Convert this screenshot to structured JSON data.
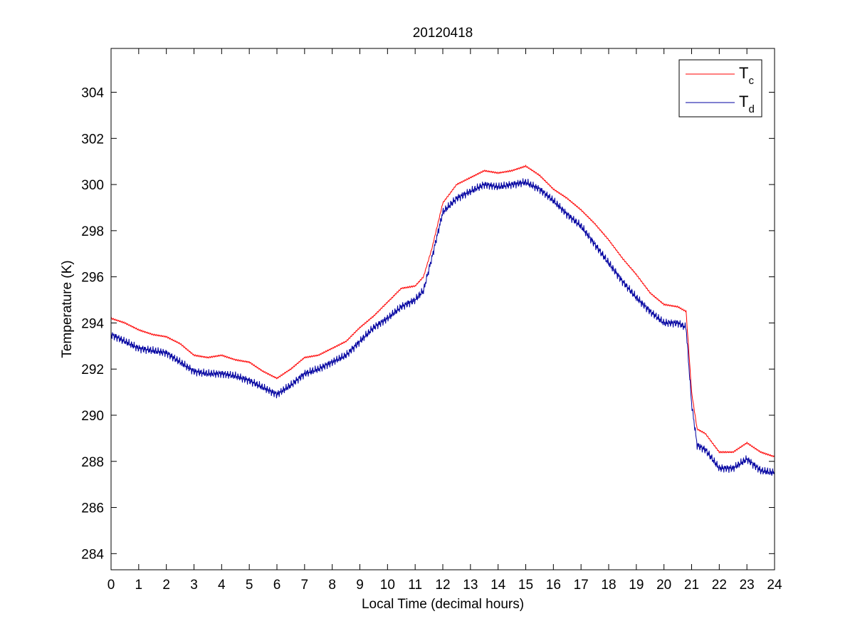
{
  "chart_data": {
    "type": "line",
    "title": "20120418",
    "xlabel": "Local Time (decimal hours)",
    "ylabel": "Temperature (K)",
    "xlim": [
      0,
      24
    ],
    "ylim": [
      283.3,
      305.9
    ],
    "xticks": [
      0,
      1,
      2,
      3,
      4,
      5,
      6,
      7,
      8,
      9,
      10,
      11,
      12,
      13,
      14,
      15,
      16,
      17,
      18,
      19,
      20,
      21,
      22,
      23,
      24
    ],
    "yticks": [
      284,
      286,
      288,
      290,
      292,
      294,
      296,
      298,
      300,
      302,
      304
    ],
    "grid": false,
    "legend_position": "top-right",
    "series": [
      {
        "name": "T_c",
        "legend_main": "T",
        "legend_sub": "c",
        "color": "#ff0000",
        "x": [
          0,
          0.5,
          1,
          1.5,
          2,
          2.5,
          3,
          3.5,
          4,
          4.5,
          5,
          5.5,
          6,
          6.5,
          7,
          7.5,
          8,
          8.5,
          9,
          9.5,
          10,
          10.5,
          11,
          11.3,
          11.6,
          12,
          12.5,
          13,
          13.5,
          14,
          14.5,
          15,
          15.5,
          16,
          16.5,
          17,
          17.5,
          18,
          18.5,
          19,
          19.5,
          20,
          20.5,
          20.8,
          21,
          21.2,
          21.5,
          22,
          22.5,
          23,
          23.5,
          24
        ],
        "y": [
          294.2,
          294.0,
          293.7,
          293.5,
          293.4,
          293.1,
          292.6,
          292.5,
          292.6,
          292.4,
          292.3,
          291.9,
          291.6,
          292.0,
          292.5,
          292.6,
          292.9,
          293.2,
          293.8,
          294.3,
          294.9,
          295.5,
          295.6,
          296.0,
          297.2,
          299.2,
          300.0,
          300.3,
          300.6,
          300.5,
          300.6,
          300.8,
          300.4,
          299.8,
          299.4,
          298.9,
          298.3,
          297.6,
          296.8,
          296.1,
          295.3,
          294.8,
          294.7,
          294.5,
          291.0,
          289.4,
          289.2,
          288.4,
          288.4,
          288.8,
          288.4,
          288.2
        ]
      },
      {
        "name": "T_d",
        "legend_main": "T",
        "legend_sub": "d",
        "color": "#0000a0",
        "x": [
          0,
          0.5,
          1,
          1.5,
          2,
          2.5,
          3,
          3.5,
          4,
          4.5,
          5,
          5.5,
          6,
          6.5,
          7,
          7.5,
          8,
          8.5,
          9,
          9.5,
          10,
          10.5,
          11,
          11.3,
          11.6,
          12,
          12.5,
          13,
          13.5,
          14,
          14.5,
          15,
          15.5,
          16,
          16.5,
          17,
          17.5,
          18,
          18.5,
          19,
          19.5,
          20,
          20.5,
          20.8,
          21,
          21.2,
          21.5,
          22,
          22.5,
          23,
          23.5,
          24
        ],
        "y": [
          293.5,
          293.2,
          292.9,
          292.8,
          292.7,
          292.3,
          291.9,
          291.8,
          291.8,
          291.7,
          291.5,
          291.2,
          290.9,
          291.3,
          291.8,
          292.0,
          292.3,
          292.6,
          293.2,
          293.8,
          294.2,
          294.7,
          295.0,
          295.4,
          296.8,
          298.8,
          299.4,
          299.7,
          300.0,
          299.9,
          300.0,
          300.1,
          299.8,
          299.3,
          298.7,
          298.2,
          297.4,
          296.6,
          295.8,
          295.1,
          294.5,
          294.0,
          294.0,
          293.8,
          290.5,
          288.7,
          288.5,
          287.7,
          287.7,
          288.1,
          287.6,
          287.5
        ]
      }
    ]
  }
}
